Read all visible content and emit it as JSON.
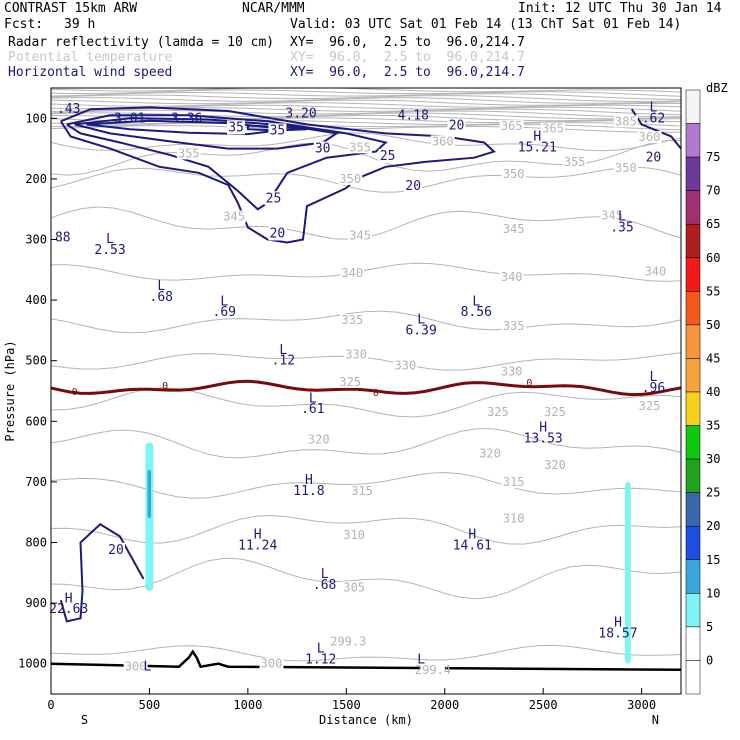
{
  "header": {
    "model": "CONTRAST 15km ARW",
    "org": "NCAR/MMM",
    "init": "Init: 12 UTC Thu 30 Jan 14",
    "fcst_label": "Fcst:",
    "fcst_value": "39 h",
    "valid": "Valid: 03 UTC Sat 01 Feb 14 (13 ChT Sat 01 Feb 14)",
    "fields": [
      {
        "name": "Radar reflectivity (lamda = 10 cm)",
        "xy": "XY=  96.0,  2.5 to  96.0,214.7",
        "style": "black"
      },
      {
        "name": "Potential temperature",
        "xy": "XY=  96.0,  2.5 to  96.0,214.7",
        "style": "faint"
      },
      {
        "name": "Horizontal wind speed",
        "xy": "XY=  96.0,  2.5 to  96.0,214.7",
        "style": "navy"
      }
    ]
  },
  "colors": {
    "theta": "#b4b4b4",
    "wind": "#1a1a80",
    "freezing": "#7a0a0a",
    "terrain": "#000000",
    "radar_light": "#7ff4f4",
    "radar_mid": "#3aa7dc"
  },
  "chart_data": {
    "type": "cross-section",
    "xlabel": "Distance (km)",
    "ylabel": "Pressure (hPa)",
    "xlim": [
      0,
      3200
    ],
    "ylim": [
      1050,
      50
    ],
    "x_ticks": [
      0,
      500,
      1000,
      1500,
      2000,
      2500,
      3000
    ],
    "y_ticks": [
      100,
      200,
      300,
      400,
      500,
      600,
      700,
      800,
      900,
      1000
    ],
    "x_end_labels": {
      "left": "S",
      "right": "N"
    },
    "colorbar": {
      "unit": "dBZ",
      "levels": [
        0,
        5,
        10,
        15,
        20,
        25,
        30,
        35,
        40,
        45,
        50,
        55,
        60,
        65,
        70,
        75
      ],
      "colors": [
        "#ffffff",
        "#ffffff",
        "#7ff4f4",
        "#3aa7dc",
        "#1f4fe0",
        "#3a66aa",
        "#1fa31f",
        "#10c810",
        "#f6d21e",
        "#f7a23a",
        "#f8953a",
        "#f25a1a",
        "#f21a1a",
        "#b01e1e",
        "#a0306e",
        "#6e3a9a",
        "#b07ad2",
        "#f4f4f4"
      ]
    },
    "theta_labels": [
      {
        "text": "365",
        "x": 2340,
        "p": 113
      },
      {
        "text": "365",
        "x": 2550,
        "p": 117
      },
      {
        "text": "385",
        "x": 2920,
        "p": 105
      },
      {
        "text": "360",
        "x": 1990,
        "p": 138
      },
      {
        "text": "355",
        "x": 2660,
        "p": 172
      },
      {
        "text": "350",
        "x": 2350,
        "p": 192
      },
      {
        "text": "350",
        "x": 2920,
        "p": 182
      },
      {
        "text": "350",
        "x": 1520,
        "p": 200
      },
      {
        "text": "355",
        "x": 700,
        "p": 158
      },
      {
        "text": "345",
        "x": 930,
        "p": 262
      },
      {
        "text": "345",
        "x": 1570,
        "p": 293
      },
      {
        "text": "345",
        "x": 2350,
        "p": 283
      },
      {
        "text": "345",
        "x": 2850,
        "p": 260
      },
      {
        "text": "340",
        "x": 1530,
        "p": 355
      },
      {
        "text": "340",
        "x": 2340,
        "p": 362
      },
      {
        "text": "340",
        "x": 3070,
        "p": 353
      },
      {
        "text": "335",
        "x": 1530,
        "p": 433
      },
      {
        "text": "335",
        "x": 2350,
        "p": 443
      },
      {
        "text": "330",
        "x": 1550,
        "p": 490
      },
      {
        "text": "330",
        "x": 1800,
        "p": 508
      },
      {
        "text": "330",
        "x": 2340,
        "p": 518
      },
      {
        "text": "325",
        "x": 1520,
        "p": 535
      },
      {
        "text": "325",
        "x": 2270,
        "p": 585
      },
      {
        "text": "325",
        "x": 2560,
        "p": 585
      },
      {
        "text": "320",
        "x": 1360,
        "p": 630
      },
      {
        "text": "320",
        "x": 2230,
        "p": 653
      },
      {
        "text": "320",
        "x": 2560,
        "p": 672
      },
      {
        "text": "315",
        "x": 1580,
        "p": 715
      },
      {
        "text": "315",
        "x": 2350,
        "p": 700
      },
      {
        "text": "310",
        "x": 1540,
        "p": 788
      },
      {
        "text": "310",
        "x": 2350,
        "p": 760
      },
      {
        "text": "305",
        "x": 1540,
        "p": 874
      },
      {
        "text": "300",
        "x": 430,
        "p": 1005
      },
      {
        "text": "300",
        "x": 1120,
        "p": 1000
      },
      {
        "text": "299.3",
        "x": 1510,
        "p": 963
      },
      {
        "text": "299.4",
        "x": 1940,
        "p": 1010
      },
      {
        "text": "360",
        "x": 3040,
        "p": 131
      },
      {
        "text": "355",
        "x": 1570,
        "p": 148
      },
      {
        "text": "325",
        "x": 3040,
        "p": 575
      }
    ],
    "wind_contour_labels": [
      {
        "text": "35",
        "x": 940,
        "p": 115
      },
      {
        "text": "35",
        "x": 1150,
        "p": 120
      },
      {
        "text": "30",
        "x": 1380,
        "p": 150
      },
      {
        "text": "25",
        "x": 1710,
        "p": 162
      },
      {
        "text": "20",
        "x": 2060,
        "p": 112
      },
      {
        "text": "20",
        "x": 1840,
        "p": 212
      },
      {
        "text": "25",
        "x": 1130,
        "p": 232
      },
      {
        "text": "20",
        "x": 1150,
        "p": 290
      },
      {
        "text": "20",
        "x": 3060,
        "p": 165
      },
      {
        "text": "20",
        "x": 330,
        "p": 812
      }
    ],
    "wind_extrema": [
      {
        "kind": "",
        "value": ".43",
        "x": 90,
        "p": 85
      },
      {
        "kind": "",
        "value": "3.01",
        "x": 400,
        "p": 100
      },
      {
        "kind": "",
        "value": "3.36",
        "x": 690,
        "p": 100
      },
      {
        "kind": "",
        "value": "3.20",
        "x": 1270,
        "p": 92
      },
      {
        "kind": "",
        "value": "4.18",
        "x": 1840,
        "p": 95
      },
      {
        "kind": "L",
        "value": ".62",
        "x": 3060,
        "p": 100
      },
      {
        "kind": "H",
        "value": "15.21",
        "x": 2470,
        "p": 148
      },
      {
        "kind": "L",
        "value": ".35",
        "x": 2900,
        "p": 280
      },
      {
        "kind": "",
        "value": "88",
        "x": 60,
        "p": 297
      },
      {
        "kind": "L",
        "value": "2.53",
        "x": 300,
        "p": 317
      },
      {
        "kind": "L",
        "value": ".68",
        "x": 560,
        "p": 395
      },
      {
        "kind": "L",
        "value": ".69",
        "x": 880,
        "p": 420
      },
      {
        "kind": "L",
        "value": "6.39",
        "x": 1880,
        "p": 450
      },
      {
        "kind": "L",
        "value": "8.56",
        "x": 2160,
        "p": 420
      },
      {
        "kind": "L",
        "value": ".12",
        "x": 1180,
        "p": 500
      },
      {
        "kind": "L",
        "value": ".96",
        "x": 3060,
        "p": 545
      },
      {
        "kind": "L",
        "value": ".61",
        "x": 1330,
        "p": 580
      },
      {
        "kind": "H",
        "value": "13.53",
        "x": 2500,
        "p": 628
      },
      {
        "kind": "H",
        "value": "11.8",
        "x": 1310,
        "p": 715
      },
      {
        "kind": "H",
        "value": "11.24",
        "x": 1050,
        "p": 805
      },
      {
        "kind": "H",
        "value": "14.61",
        "x": 2140,
        "p": 805
      },
      {
        "kind": "L",
        "value": ".68",
        "x": 1390,
        "p": 870
      },
      {
        "kind": "H",
        "value": "22.63",
        "x": 90,
        "p": 910
      },
      {
        "kind": "H",
        "value": "18.57",
        "x": 2880,
        "p": 950
      },
      {
        "kind": "L",
        "value": "1.12",
        "x": 1370,
        "p": 993
      },
      {
        "kind": "",
        "value": "L",
        "x": 490,
        "p": 1005
      },
      {
        "kind": "",
        "value": "L",
        "x": 1880,
        "p": 993
      }
    ],
    "freezing_level_labels": [
      {
        "text": "0",
        "x": 120,
        "p": 550
      },
      {
        "text": "0",
        "x": 580,
        "p": 540
      },
      {
        "text": "0",
        "x": 1650,
        "p": 552
      },
      {
        "text": "0",
        "x": 2430,
        "p": 535
      }
    ]
  }
}
